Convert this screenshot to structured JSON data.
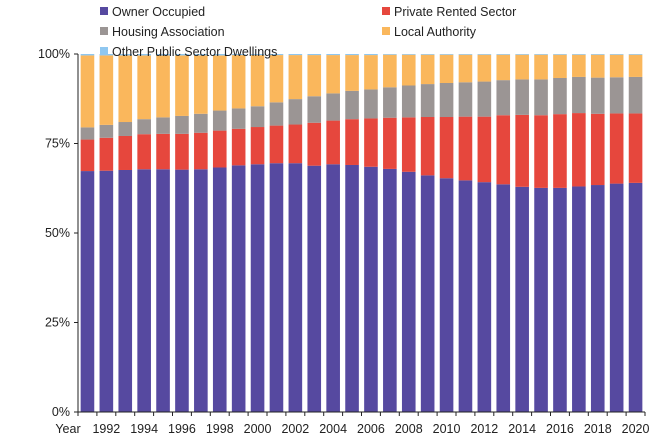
{
  "chart_data": {
    "type": "bar",
    "stacked": true,
    "title": "",
    "xlabel": "Year",
    "ylabel": "",
    "ylim": [
      0,
      100
    ],
    "y_ticks": [
      "0%",
      "25%",
      "50%",
      "75%",
      "100%"
    ],
    "x_first_label": "Year",
    "x_tick_labels": [
      "1992",
      "1994",
      "1996",
      "1998",
      "2000",
      "2002",
      "2004",
      "2006",
      "2008",
      "2010",
      "2012",
      "2014",
      "2016",
      "2018",
      "2020"
    ],
    "categories": [
      "1991",
      "1992",
      "1993",
      "1994",
      "1995",
      "1996",
      "1997",
      "1998",
      "1999",
      "2000",
      "2001",
      "2002",
      "2003",
      "2004",
      "2005",
      "2006",
      "2007",
      "2008",
      "2009",
      "2010",
      "2011",
      "2012",
      "2013",
      "2014",
      "2015",
      "2016",
      "2017",
      "2018",
      "2019",
      "2020"
    ],
    "series": [
      {
        "name": "Owner Occupied",
        "color": "#5649a0",
        "values": [
          67.3,
          67.4,
          67.6,
          67.8,
          67.8,
          67.7,
          67.8,
          68.3,
          68.9,
          69.2,
          69.5,
          69.5,
          68.8,
          69.2,
          69.0,
          68.5,
          67.9,
          67.1,
          66.1,
          65.3,
          64.7,
          64.2,
          63.6,
          62.9,
          62.6,
          62.6,
          63.0,
          63.4,
          63.8,
          64.0
        ]
      },
      {
        "name": "Private Rented Sector",
        "color": "#e6473d",
        "values": [
          8.8,
          9.2,
          9.5,
          9.8,
          9.9,
          10.0,
          10.2,
          10.3,
          10.2,
          10.4,
          10.5,
          10.8,
          12.0,
          12.2,
          12.8,
          13.5,
          14.3,
          15.2,
          16.3,
          17.1,
          17.8,
          18.3,
          19.3,
          20.1,
          20.3,
          20.6,
          20.5,
          19.9,
          19.6,
          19.4
        ]
      },
      {
        "name": "Housing Association",
        "color": "#9b9594",
        "values": [
          3.4,
          3.6,
          3.9,
          4.2,
          4.6,
          5.0,
          5.3,
          5.6,
          5.7,
          5.8,
          6.5,
          7.1,
          7.4,
          7.6,
          7.9,
          8.1,
          8.5,
          8.9,
          9.2,
          9.5,
          9.6,
          9.8,
          9.8,
          9.9,
          10.0,
          10.1,
          10.1,
          10.1,
          10.1,
          10.2
        ]
      },
      {
        "name": "Local Authority",
        "color": "#fab75c",
        "values": [
          20.1,
          19.4,
          18.6,
          17.8,
          17.3,
          16.9,
          16.3,
          15.4,
          14.9,
          14.3,
          13.2,
          12.3,
          11.5,
          10.7,
          10.0,
          9.6,
          9.1,
          8.6,
          8.2,
          7.9,
          7.7,
          7.5,
          7.1,
          6.9,
          6.9,
          6.5,
          6.2,
          6.4,
          6.3,
          6.2
        ]
      },
      {
        "name": "Other Public Sector Dwellings",
        "color": "#8fc7f0",
        "values": [
          0.4,
          0.4,
          0.4,
          0.4,
          0.4,
          0.4,
          0.4,
          0.4,
          0.3,
          0.3,
          0.3,
          0.3,
          0.3,
          0.3,
          0.3,
          0.3,
          0.2,
          0.2,
          0.2,
          0.2,
          0.2,
          0.2,
          0.2,
          0.2,
          0.2,
          0.2,
          0.2,
          0.2,
          0.2,
          0.2
        ]
      }
    ],
    "legend": [
      {
        "label": "Owner Occupied",
        "color": "#5649a0"
      },
      {
        "label": "Private Rented Sector",
        "color": "#e6473d"
      },
      {
        "label": "Housing Association",
        "color": "#9b9594"
      },
      {
        "label": "Local Authority",
        "color": "#fab75c"
      },
      {
        "label": "Other Public Sector Dwellings",
        "color": "#8fc7f0"
      }
    ],
    "legend_position": "top",
    "grid": false
  }
}
